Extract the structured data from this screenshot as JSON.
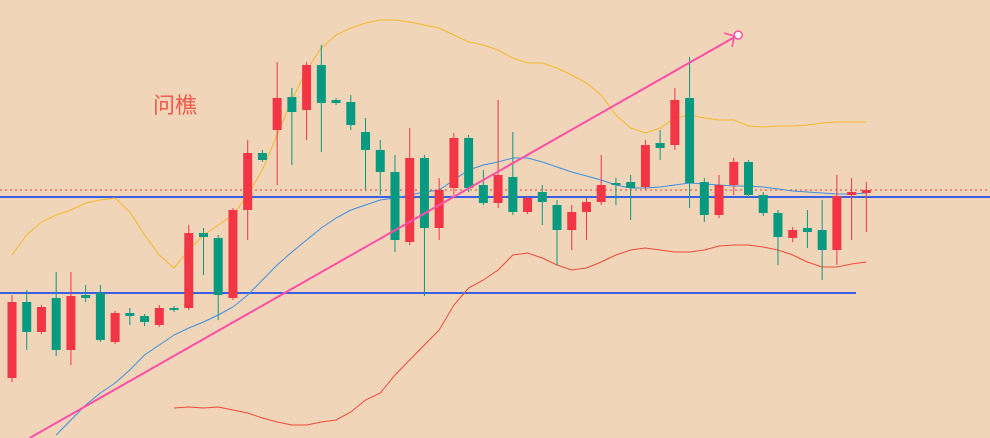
{
  "chart_data": {
    "type": "candlestick",
    "title": "问樵",
    "title_color": "#f05a4a",
    "ylim": [
      0,
      438
    ],
    "up_color": "#f23645",
    "down_color": "#089981",
    "open": [
      60,
      136,
      106,
      140,
      88,
      143,
      145,
      96,
      125,
      122,
      113,
      130,
      130,
      205,
      200,
      140,
      228,
      285,
      308,
      341,
      328,
      373,
      338,
      336,
      306,
      288,
      266,
      196,
      280,
      210,
      250,
      300,
      253,
      235,
      261,
      226,
      246,
      233,
      208,
      226,
      236,
      255,
      256,
      251,
      295,
      293,
      340,
      256,
      223,
      253,
      276,
      243,
      225,
      200,
      210,
      208,
      188,
      243,
      245
    ],
    "high": [
      143,
      148,
      133,
      166,
      166,
      153,
      153,
      127,
      130,
      124,
      133,
      132,
      213,
      210,
      203,
      230,
      298,
      288,
      376,
      350,
      376,
      393,
      340,
      343,
      320,
      298,
      283,
      310,
      283,
      260,
      305,
      303,
      268,
      338,
      306,
      242,
      253,
      238,
      233,
      240,
      283,
      260,
      263,
      298,
      308,
      350,
      381,
      260,
      263,
      280,
      278,
      246,
      228,
      211,
      228,
      238,
      263,
      260,
      256
    ],
    "low": [
      56,
      88,
      104,
      82,
      73,
      136,
      96,
      94,
      113,
      112,
      111,
      126,
      128,
      163,
      118,
      138,
      198,
      276,
      253,
      273,
      298,
      286,
      333,
      308,
      248,
      243,
      186,
      193,
      142,
      198,
      243,
      246,
      233,
      230,
      223,
      224,
      213,
      173,
      188,
      198,
      233,
      233,
      218,
      248,
      278,
      288,
      230,
      216,
      220,
      243,
      240,
      222,
      173,
      196,
      190,
      158,
      173,
      198,
      206
    ],
    "close": [
      136,
      106,
      131,
      88,
      142,
      140,
      98,
      125,
      122,
      116,
      130,
      128,
      205,
      201,
      143,
      228,
      285,
      278,
      340,
      326,
      373,
      335,
      335,
      313,
      288,
      266,
      198,
      280,
      210,
      248,
      300,
      250,
      235,
      263,
      226,
      240,
      236,
      208,
      226,
      236,
      253,
      253,
      250,
      293,
      290,
      338,
      255,
      223,
      253,
      276,
      243,
      225,
      201,
      208,
      206,
      188,
      242,
      246,
      248
    ],
    "series": [
      {
        "color": "#f5b82e",
        "values": [
          183,
          203,
          216,
          223,
          228,
          235,
          238,
          240,
          226,
          203,
          183,
          170,
          188,
          203,
          213,
          223,
          243,
          268,
          303,
          338,
          368,
          390,
          403,
          410,
          415,
          418,
          418,
          416,
          413,
          410,
          403,
          396,
          393,
          388,
          380,
          375,
          375,
          370,
          363,
          355,
          343,
          323,
          310,
          305,
          310,
          320,
          323,
          320,
          318,
          318,
          312,
          311,
          312,
          312,
          313,
          315,
          316,
          316,
          316
        ]
      },
      {
        "color": "#3d8fe0",
        "values": [
          null,
          null,
          null,
          3,
          18,
          33,
          45,
          55,
          68,
          83,
          93,
          103,
          110,
          116,
          123,
          131,
          143,
          158,
          173,
          186,
          198,
          210,
          220,
          228,
          233,
          238,
          240,
          243,
          246,
          248,
          258,
          268,
          273,
          276,
          280,
          280,
          276,
          271,
          266,
          262,
          258,
          253,
          250,
          250,
          251,
          253,
          255,
          254,
          253,
          252,
          252,
          251,
          249,
          247,
          246,
          245,
          244,
          244,
          245
        ]
      },
      {
        "color": "#f04a3a",
        "values": [
          null,
          null,
          null,
          null,
          null,
          null,
          null,
          null,
          null,
          null,
          null,
          30,
          31,
          30,
          31,
          28,
          25,
          20,
          16,
          13,
          13,
          16,
          18,
          26,
          38,
          45,
          63,
          78,
          93,
          108,
          133,
          150,
          158,
          168,
          183,
          185,
          180,
          173,
          168,
          170,
          176,
          183,
          188,
          190,
          188,
          186,
          186,
          188,
          192,
          193,
          193,
          191,
          188,
          183,
          176,
          171,
          171,
          174,
          176
        ]
      }
    ],
    "levels": [
      {
        "value": 241,
        "color": "#3a5fe5",
        "to": 67
      },
      {
        "value": 145,
        "color": "#3a5fe5",
        "to": 57.3
      },
      {
        "value": 248,
        "color": "#e0453a",
        "to": 67,
        "dash": true
      }
    ],
    "trendline": {
      "color": "#ff4fa8",
      "x": [
        1.2,
        49.3
      ],
      "values": [
        0,
        403
      ]
    }
  }
}
